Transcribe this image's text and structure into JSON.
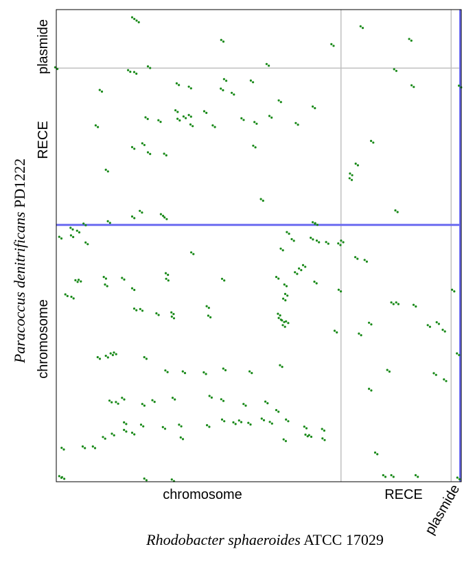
{
  "chart_data": {
    "type": "scatter",
    "x_axis": {
      "title_italic": "Rhodobacter sphaeroides",
      "title_plain": " ATCC 17029",
      "segments": [
        "chromosome",
        "RECE",
        "plasmide"
      ],
      "range": [
        0,
        1
      ]
    },
    "y_axis": {
      "title_italic": "Paracoccus denitrificans",
      "title_plain": " PD1222",
      "segments": [
        "chromosome",
        "RECE",
        "plasmide"
      ],
      "range": [
        0,
        1
      ]
    },
    "segment_bounds_x": [
      0.703,
      0.975
    ],
    "segment_bounds_y": [
      0.544,
      0.876
    ],
    "colors": {
      "points": "#1a8a1a",
      "highlight": "#6a6af0",
      "divider": "#c0c0c0",
      "frame": "#000000"
    },
    "series": [
      {
        "points": [
          [
            0.19,
            0.982
          ],
          [
            0.201,
            0.975
          ],
          [
            0.41,
            0.934
          ],
          [
            0.754,
            0.963
          ],
          [
            0.874,
            0.936
          ],
          [
            0.682,
            0.925
          ],
          [
            0.0,
            0.876
          ],
          [
            0.18,
            0.87
          ],
          [
            0.195,
            0.866
          ],
          [
            0.229,
            0.878
          ],
          [
            0.522,
            0.883
          ],
          [
            0.837,
            0.872
          ],
          [
            0.11,
            0.828
          ],
          [
            0.3,
            0.842
          ],
          [
            0.33,
            0.835
          ],
          [
            0.417,
            0.851
          ],
          [
            0.483,
            0.848
          ],
          [
            0.88,
            0.838
          ],
          [
            0.409,
            0.831
          ],
          [
            0.997,
            0.837
          ],
          [
            0.297,
            0.785
          ],
          [
            0.33,
            0.775
          ],
          [
            0.302,
            0.767
          ],
          [
            0.317,
            0.772
          ],
          [
            0.334,
            0.755
          ],
          [
            0.368,
            0.783
          ],
          [
            0.389,
            0.753
          ],
          [
            0.436,
            0.822
          ],
          [
            0.46,
            0.768
          ],
          [
            0.492,
            0.76
          ],
          [
            0.529,
            0.773
          ],
          [
            0.552,
            0.806
          ],
          [
            0.594,
            0.758
          ],
          [
            0.636,
            0.793
          ],
          [
            0.1,
            0.753
          ],
          [
            0.223,
            0.77
          ],
          [
            0.255,
            0.764
          ],
          [
            0.19,
            0.707
          ],
          [
            0.215,
            0.715
          ],
          [
            0.229,
            0.696
          ],
          [
            0.269,
            0.693
          ],
          [
            0.489,
            0.71
          ],
          [
            0.78,
            0.72
          ],
          [
            0.742,
            0.672
          ],
          [
            0.728,
            0.651
          ],
          [
            0.727,
            0.641
          ],
          [
            0.125,
            0.659
          ],
          [
            0.508,
            0.597
          ],
          [
            0.84,
            0.573
          ],
          [
            0.209,
            0.572
          ],
          [
            0.261,
            0.565
          ],
          [
            0.19,
            0.56
          ],
          [
            0.27,
            0.558
          ],
          [
            0.13,
            0.55
          ],
          [
            0.07,
            0.545
          ],
          [
            0.636,
            0.548
          ],
          [
            0.642,
            0.546
          ],
          [
            0.01,
            0.517
          ],
          [
            0.038,
            0.536
          ],
          [
            0.054,
            0.53
          ],
          [
            0.039,
            0.52
          ],
          [
            0.075,
            0.505
          ],
          [
            0.336,
            0.484
          ],
          [
            0.557,
            0.492
          ],
          [
            0.572,
            0.527
          ],
          [
            0.584,
            0.512
          ],
          [
            0.631,
            0.515
          ],
          [
            0.646,
            0.509
          ],
          [
            0.669,
            0.506
          ],
          [
            0.699,
            0.503
          ],
          [
            0.706,
            0.509
          ],
          [
            0.764,
            0.468
          ],
          [
            0.741,
            0.474
          ],
          [
            0.05,
            0.425
          ],
          [
            0.058,
            0.426
          ],
          [
            0.025,
            0.395
          ],
          [
            0.04,
            0.39
          ],
          [
            0.12,
            0.432
          ],
          [
            0.123,
            0.416
          ],
          [
            0.165,
            0.43
          ],
          [
            0.19,
            0.408
          ],
          [
            0.273,
            0.44
          ],
          [
            0.274,
            0.428
          ],
          [
            0.412,
            0.428
          ],
          [
            0.546,
            0.432
          ],
          [
            0.566,
            0.416
          ],
          [
            0.592,
            0.442
          ],
          [
            0.602,
            0.45
          ],
          [
            0.612,
            0.457
          ],
          [
            0.563,
            0.386
          ],
          [
            0.568,
            0.396
          ],
          [
            0.7,
            0.405
          ],
          [
            0.64,
            0.422
          ],
          [
            0.195,
            0.365
          ],
          [
            0.21,
            0.364
          ],
          [
            0.25,
            0.355
          ],
          [
            0.287,
            0.357
          ],
          [
            0.288,
            0.348
          ],
          [
            0.374,
            0.37
          ],
          [
            0.378,
            0.35
          ],
          [
            0.55,
            0.354
          ],
          [
            0.552,
            0.345
          ],
          [
            0.56,
            0.34
          ],
          [
            0.57,
            0.338
          ],
          [
            0.562,
            0.33
          ],
          [
            0.83,
            0.378
          ],
          [
            0.842,
            0.378
          ],
          [
            0.885,
            0.373
          ],
          [
            0.92,
            0.33
          ],
          [
            0.942,
            0.336
          ],
          [
            0.957,
            0.32
          ],
          [
            0.98,
            0.405
          ],
          [
            0.69,
            0.318
          ],
          [
            0.75,
            0.312
          ],
          [
            0.775,
            0.335
          ],
          [
            0.105,
            0.262
          ],
          [
            0.125,
            0.265
          ],
          [
            0.137,
            0.27
          ],
          [
            0.145,
            0.272
          ],
          [
            0.22,
            0.262
          ],
          [
            0.272,
            0.234
          ],
          [
            0.315,
            0.232
          ],
          [
            0.367,
            0.23
          ],
          [
            0.415,
            0.238
          ],
          [
            0.48,
            0.232
          ],
          [
            0.555,
            0.245
          ],
          [
            0.82,
            0.235
          ],
          [
            0.935,
            0.228
          ],
          [
            0.96,
            0.215
          ],
          [
            0.992,
            0.27
          ],
          [
            0.134,
            0.17
          ],
          [
            0.15,
            0.167
          ],
          [
            0.165,
            0.176
          ],
          [
            0.215,
            0.163
          ],
          [
            0.24,
            0.171
          ],
          [
            0.29,
            0.176
          ],
          [
            0.381,
            0.18
          ],
          [
            0.41,
            0.173
          ],
          [
            0.465,
            0.163
          ],
          [
            0.519,
            0.168
          ],
          [
            0.546,
            0.15
          ],
          [
            0.775,
            0.195
          ],
          [
            0.17,
            0.124
          ],
          [
            0.212,
            0.119
          ],
          [
            0.266,
            0.114
          ],
          [
            0.306,
            0.119
          ],
          [
            0.375,
            0.118
          ],
          [
            0.412,
            0.13
          ],
          [
            0.44,
            0.124
          ],
          [
            0.454,
            0.128
          ],
          [
            0.477,
            0.123
          ],
          [
            0.51,
            0.132
          ],
          [
            0.53,
            0.125
          ],
          [
            0.57,
            0.13
          ],
          [
            0.615,
            0.115
          ],
          [
            0.66,
            0.09
          ],
          [
            0.016,
            0.07
          ],
          [
            0.068,
            0.073
          ],
          [
            0.093,
            0.073
          ],
          [
            0.118,
            0.093
          ],
          [
            0.14,
            0.1
          ],
          [
            0.17,
            0.108
          ],
          [
            0.19,
            0.102
          ],
          [
            0.31,
            0.092
          ],
          [
            0.564,
            0.088
          ],
          [
            0.618,
            0.098
          ],
          [
            0.659,
            0.11
          ],
          [
            0.627,
            0.097
          ],
          [
            0.79,
            0.06
          ],
          [
            0.01,
            0.01
          ],
          [
            0.017,
            0.008
          ],
          [
            0.22,
            0.005
          ],
          [
            0.288,
            0.003
          ],
          [
            0.81,
            0.012
          ],
          [
            0.83,
            0.012
          ],
          [
            0.89,
            0.012
          ],
          [
            0.993,
            0.007
          ]
        ]
      }
    ],
    "grid": false,
    "legend": "none"
  }
}
